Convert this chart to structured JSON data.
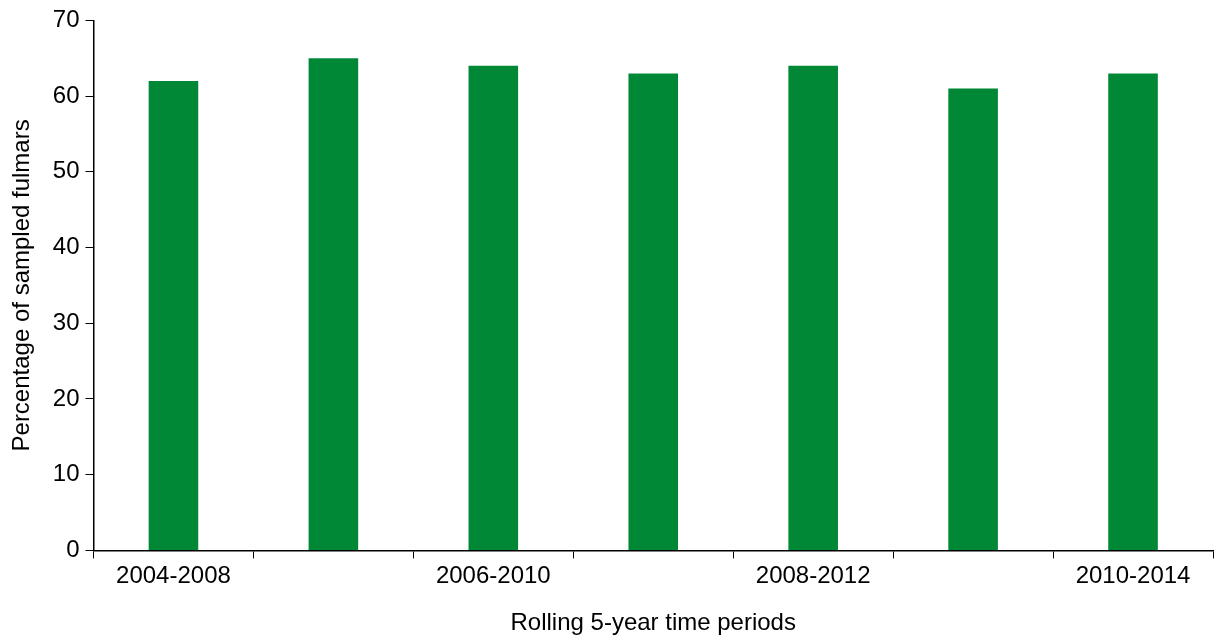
{
  "chart_data": {
    "type": "bar",
    "xlabel": "Rolling 5-year time periods",
    "ylabel": "Percentage of sampled fulmars",
    "categories": [
      "2004-2008",
      null,
      "2006-2010",
      null,
      "2008-2012",
      null,
      "2010-2014"
    ],
    "values": [
      62,
      65,
      64,
      63,
      64,
      61,
      63
    ],
    "color": "#008837",
    "ylim": [
      0,
      70
    ],
    "yticks": [
      0,
      10,
      20,
      30,
      40,
      50,
      60,
      70
    ],
    "grid": false,
    "legend": false
  }
}
